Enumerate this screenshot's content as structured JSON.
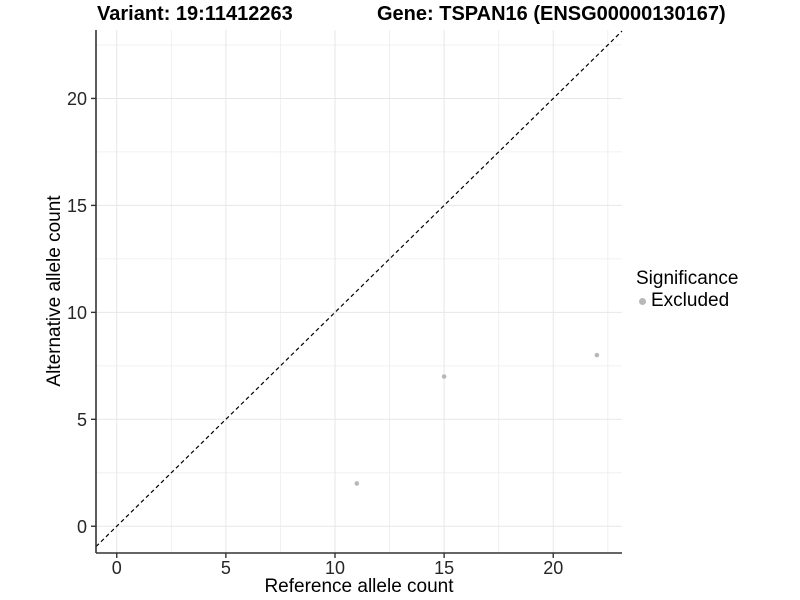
{
  "titles": {
    "variant": "Variant: 19:11412263",
    "gene": "Gene: TSPAN16 (ENSG00000130167)"
  },
  "chart_data": {
    "type": "scatter",
    "title_left": "Variant: 19:11412263",
    "title_right": "Gene: TSPAN16 (ENSG00000130167)",
    "xlabel": "Reference allele count",
    "ylabel": "Alternative allele count",
    "legend_title": "Significance",
    "legend_position": "right",
    "series": [
      {
        "name": "Excluded",
        "color": "#b8b8b8",
        "points": [
          [
            11,
            2
          ],
          [
            15,
            7
          ],
          [
            22,
            8
          ]
        ]
      }
    ],
    "abline": {
      "slope": 1,
      "intercept": 0,
      "style": "dashed",
      "color": "#000000"
    },
    "xlim": [
      -0.95,
      23.15
    ],
    "ylim": [
      -1.25,
      23.2
    ],
    "x_ticks": [
      0,
      5,
      10,
      15,
      20
    ],
    "y_ticks": [
      0,
      5,
      10,
      15,
      20
    ],
    "x_minor_ticks": [
      2.5,
      7.5,
      12.5,
      17.5,
      22.5
    ],
    "y_minor_ticks": [
      2.5,
      7.5,
      12.5,
      17.5,
      22.5
    ],
    "grid": "major+minor"
  },
  "style": {
    "point_radius": 2.3,
    "grid_major_color": "#e7e7e7",
    "grid_minor_color": "#f0f0f0",
    "axis_line_color": "#333333",
    "tick_label_color": "#262626",
    "background": "#ffffff"
  }
}
